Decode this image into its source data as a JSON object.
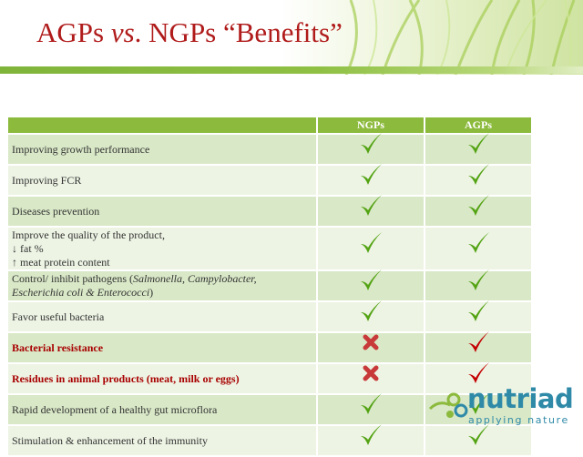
{
  "slide": {
    "title_part1": "AGPs ",
    "title_vs": "vs",
    "title_part2": ". NGPs “Benefits”"
  },
  "table": {
    "headers": [
      "",
      "NGPs",
      "AGPs"
    ],
    "rows": [
      {
        "label_html": "Improving  growth performance",
        "ngp": "check",
        "agp": "check",
        "highlight": false
      },
      {
        "label_html": "Improving FCR",
        "ngp": "check",
        "agp": "check",
        "highlight": false
      },
      {
        "label_html": "Diseases prevention",
        "ngp": "check",
        "agp": "check",
        "highlight": false
      },
      {
        "label_html": "Improve the quality of the product,<br>↓ fat %<br>↑ meat protein content",
        "ngp": "check",
        "agp": "check",
        "highlight": false
      },
      {
        "label_html": "Control/ inhibit pathogens (<i>Salmonella, Campylobacter,</i><br><i>Escherichia coli &amp; Enterococci</i>)",
        "ngp": "check",
        "agp": "check",
        "highlight": false
      },
      {
        "label_html": "Favor useful bacteria",
        "ngp": "check",
        "agp": "check",
        "highlight": false
      },
      {
        "label_html": "Bacterial resistance",
        "ngp": "cross",
        "agp": "check-red",
        "highlight": true
      },
      {
        "label_html": "Residues in animal products (meat, milk or eggs)",
        "ngp": "cross",
        "agp": "check-red",
        "highlight": true
      },
      {
        "label_html": "Rapid development of a healthy gut microflora",
        "ngp": "check",
        "agp": "check",
        "highlight": false
      },
      {
        "label_html": "Stimulation &amp; enhancement of the immunity",
        "ngp": "check",
        "agp": "check",
        "highlight": false
      }
    ]
  },
  "colors": {
    "title": "#b01b1b",
    "header_bg": "#8cba3c",
    "check_green": "#53a313",
    "check_red": "#c40000",
    "warn_text": "#a80000"
  },
  "logo": {
    "brand": "nutriad",
    "tagline": "applying nature",
    "icon": "molecule-logo-icon"
  }
}
